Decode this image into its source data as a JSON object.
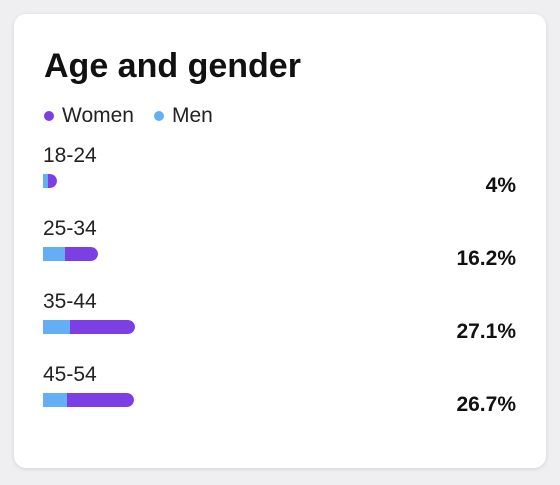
{
  "card": {
    "title": "Age and gender"
  },
  "legend": [
    {
      "label": "Women",
      "color": "#7b3fe4"
    },
    {
      "label": "Men",
      "color": "#63aef5"
    }
  ],
  "chart_data": {
    "type": "bar",
    "orientation": "horizontal",
    "stacked": true,
    "categories": [
      "18-24",
      "25-34",
      "35-44",
      "45-54"
    ],
    "totals_labels": [
      "4%",
      "16.2%",
      "27.1%",
      "26.7%"
    ],
    "totals": [
      4,
      16.2,
      27.1,
      26.7
    ],
    "series": [
      {
        "name": "Men",
        "color": "#63aef5",
        "values": [
          1.5,
          6.5,
          8.0,
          7.0
        ]
      },
      {
        "name": "Women",
        "color": "#7b3fe4",
        "values": [
          2.5,
          9.7,
          19.1,
          19.7
        ]
      }
    ],
    "xlim": [
      0,
      100
    ],
    "grid": false,
    "legend_position": "top-left"
  }
}
